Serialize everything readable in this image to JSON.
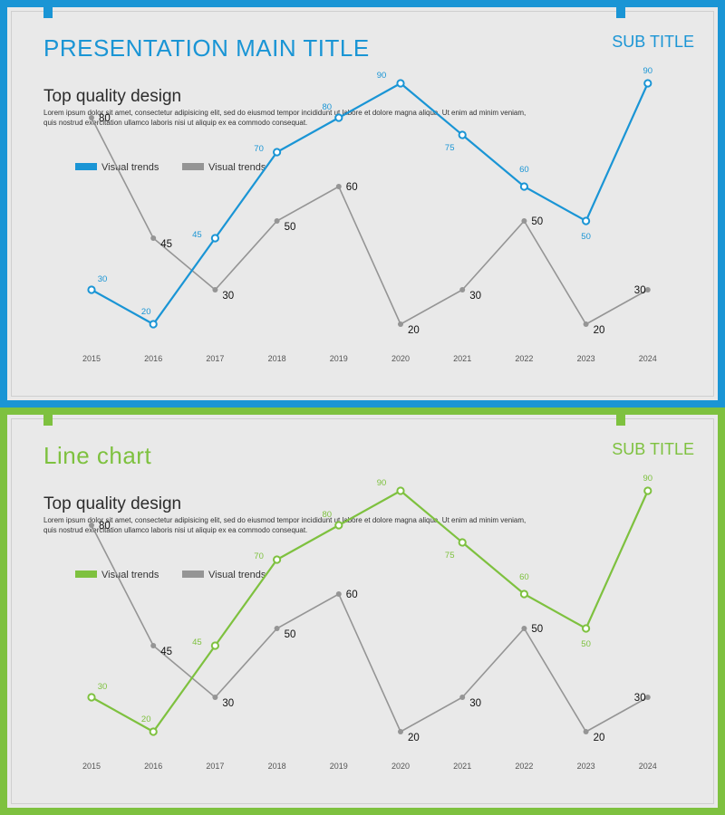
{
  "slides": [
    {
      "main_title": "PRESENTATION  MAIN TITLE",
      "sub_title": "SUB TITLE",
      "heading": "Top quality design",
      "body": "Lorem ipsum dolor sit amet, consectetur adipisicing elit, sed do eiusmod tempor incididunt ut labore et dolore magna aliqua. Ut enim ad minim veniam, quis nostrud exercitation ullamco laboris nisi ut aliquip ex ea commodo consequat.",
      "accent": "#1a95d5"
    },
    {
      "main_title": "Line chart",
      "sub_title": "SUB TITLE",
      "heading": "Top quality design",
      "body": "Lorem ipsum dolor sit amet, consectetur adipisicing elit, sed do eiusmod tempor incididunt ut labore et dolore magna aliqua. Ut enim ad minim veniam, quis nostrud exercitation ullamco laboris nisi ut aliquip ex ea commodo consequat.",
      "accent": "#7ec13f"
    }
  ],
  "chart_data": [
    {
      "type": "line",
      "categories": [
        "2015",
        "2016",
        "2017",
        "2018",
        "2019",
        "2020",
        "2021",
        "2022",
        "2023",
        "2024"
      ],
      "series": [
        {
          "name": "Visual trends",
          "color": "#1a95d5",
          "values": [
            30,
            20,
            45,
            70,
            80,
            90,
            75,
            60,
            50,
            90
          ]
        },
        {
          "name": "Visual trends",
          "color": "#959595",
          "values": [
            80,
            45,
            30,
            50,
            60,
            20,
            30,
            50,
            20,
            30
          ]
        }
      ],
      "legend": "top-left",
      "grid": false
    },
    {
      "type": "line",
      "categories": [
        "2015",
        "2016",
        "2017",
        "2018",
        "2019",
        "2020",
        "2021",
        "2022",
        "2023",
        "2024"
      ],
      "series": [
        {
          "name": "Visual trends",
          "color": "#7ec13f",
          "values": [
            30,
            20,
            45,
            70,
            80,
            90,
            75,
            60,
            50,
            90
          ]
        },
        {
          "name": "Visual trends",
          "color": "#959595",
          "values": [
            80,
            45,
            30,
            50,
            60,
            20,
            30,
            50,
            20,
            30
          ]
        }
      ],
      "legend": "top-left",
      "grid": false
    }
  ]
}
